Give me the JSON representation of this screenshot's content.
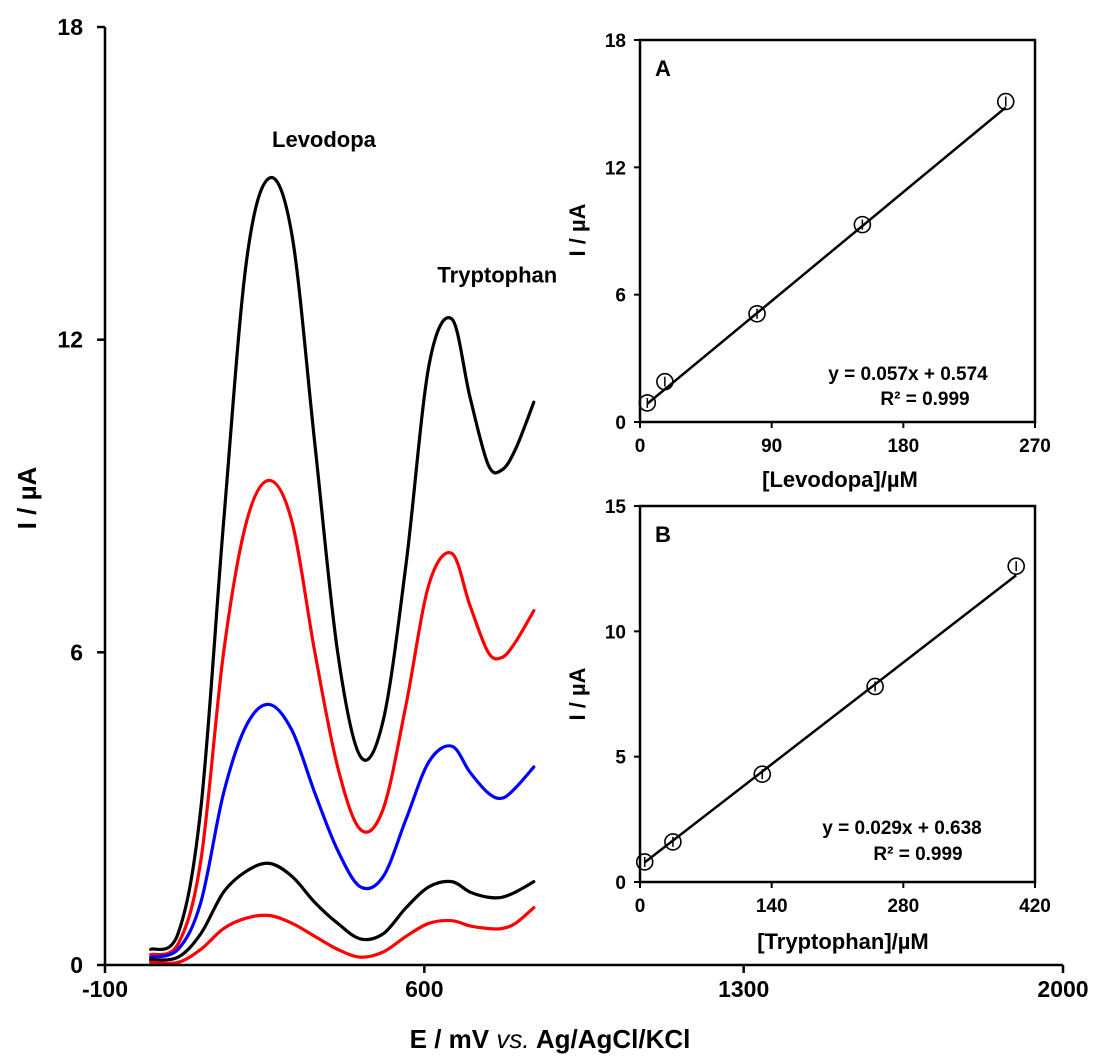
{
  "chart_data": [
    {
      "type": "line",
      "xlabel": "E / mV vs. Ag/AgCl/KCl",
      "xlabel_main": "E / mV ",
      "xlabel_italic": "vs.",
      "xlabel_rest": " Ag/AgCl/KCl",
      "ylabel": "I / µA",
      "xlim": [
        -100,
        2000
      ],
      "ylim": [
        0,
        18
      ],
      "xticks": [
        -100,
        600,
        1300,
        2000
      ],
      "yticks": [
        0,
        6,
        12,
        18
      ],
      "grid": false,
      "annotations": [
        {
          "text": "Levodopa",
          "x": 380,
          "y": 15.7
        },
        {
          "text": "Tryptophan",
          "x": 760,
          "y": 13.1
        }
      ],
      "series": [
        {
          "color": "#000000",
          "x": [
            0,
            60,
            110,
            160,
            210,
            260,
            310,
            360,
            410,
            460,
            510,
            560,
            610,
            660,
            700,
            740,
            770,
            800,
            840
          ],
          "y": [
            0.3,
            0.6,
            3.0,
            8.5,
            13.5,
            15.1,
            14.0,
            10.0,
            6.0,
            4.0,
            4.7,
            7.7,
            11.5,
            12.4,
            10.9,
            9.6,
            9.5,
            9.9,
            10.8
          ]
        },
        {
          "color": "#ff0000",
          "x": [
            0,
            60,
            110,
            160,
            210,
            260,
            310,
            360,
            410,
            460,
            510,
            560,
            610,
            660,
            700,
            740,
            770,
            800,
            840
          ],
          "y": [
            0.2,
            0.4,
            2.0,
            6.0,
            8.5,
            9.3,
            8.5,
            6.0,
            3.8,
            2.6,
            3.0,
            5.0,
            7.3,
            7.9,
            6.9,
            6.0,
            5.9,
            6.2,
            6.8
          ]
        },
        {
          "color": "#0000ff",
          "x": [
            0,
            60,
            110,
            160,
            210,
            260,
            310,
            360,
            410,
            460,
            510,
            560,
            610,
            660,
            700,
            740,
            770,
            800,
            840
          ],
          "y": [
            0.15,
            0.3,
            1.2,
            3.3,
            4.6,
            5.0,
            4.5,
            3.3,
            2.2,
            1.5,
            1.7,
            2.8,
            3.9,
            4.2,
            3.7,
            3.3,
            3.2,
            3.4,
            3.8
          ]
        },
        {
          "color": "#000000",
          "x": [
            0,
            60,
            110,
            160,
            210,
            260,
            310,
            360,
            410,
            460,
            510,
            560,
            610,
            660,
            700,
            740,
            770,
            800,
            840
          ],
          "y": [
            0.1,
            0.15,
            0.6,
            1.4,
            1.8,
            1.95,
            1.7,
            1.2,
            0.8,
            0.5,
            0.6,
            1.1,
            1.5,
            1.6,
            1.4,
            1.3,
            1.3,
            1.4,
            1.6
          ]
        },
        {
          "color": "#ff0000",
          "x": [
            0,
            60,
            110,
            160,
            210,
            260,
            310,
            360,
            410,
            460,
            510,
            560,
            610,
            660,
            700,
            740,
            770,
            800,
            840
          ],
          "y": [
            0.05,
            0.05,
            0.3,
            0.7,
            0.9,
            0.95,
            0.8,
            0.55,
            0.3,
            0.15,
            0.25,
            0.55,
            0.8,
            0.85,
            0.75,
            0.7,
            0.7,
            0.8,
            1.1
          ]
        }
      ]
    },
    {
      "type": "scatter",
      "title": "A",
      "xlabel": "[Levodopa]/µM",
      "ylabel": "I / µA",
      "xlim": [
        0,
        270
      ],
      "ylim": [
        0,
        18
      ],
      "xticks": [
        0,
        90,
        180,
        270
      ],
      "yticks": [
        0,
        6,
        12,
        18
      ],
      "equation": "y = 0.057x + 0.574",
      "r_squared": "R² = 0.999",
      "fit": {
        "slope": 0.057,
        "intercept": 0.574
      },
      "points": {
        "x": [
          5,
          17,
          80,
          152,
          250
        ],
        "y": [
          0.9,
          1.9,
          5.1,
          9.3,
          15.1
        ]
      }
    },
    {
      "type": "scatter",
      "title": "B",
      "xlabel": "[Tryptophan]/µM",
      "ylabel": "I / µA",
      "xlim": [
        0,
        420
      ],
      "ylim": [
        0,
        15
      ],
      "xticks": [
        0,
        140,
        280,
        420
      ],
      "yticks": [
        0,
        5,
        10,
        15
      ],
      "equation": "y = 0.029x + 0.638",
      "r_squared": "R² = 0.999",
      "fit": {
        "slope": 0.029,
        "intercept": 0.638
      },
      "points": {
        "x": [
          5,
          35,
          130,
          250,
          400
        ],
        "y": [
          0.8,
          1.6,
          4.3,
          7.8,
          12.6
        ]
      }
    }
  ]
}
